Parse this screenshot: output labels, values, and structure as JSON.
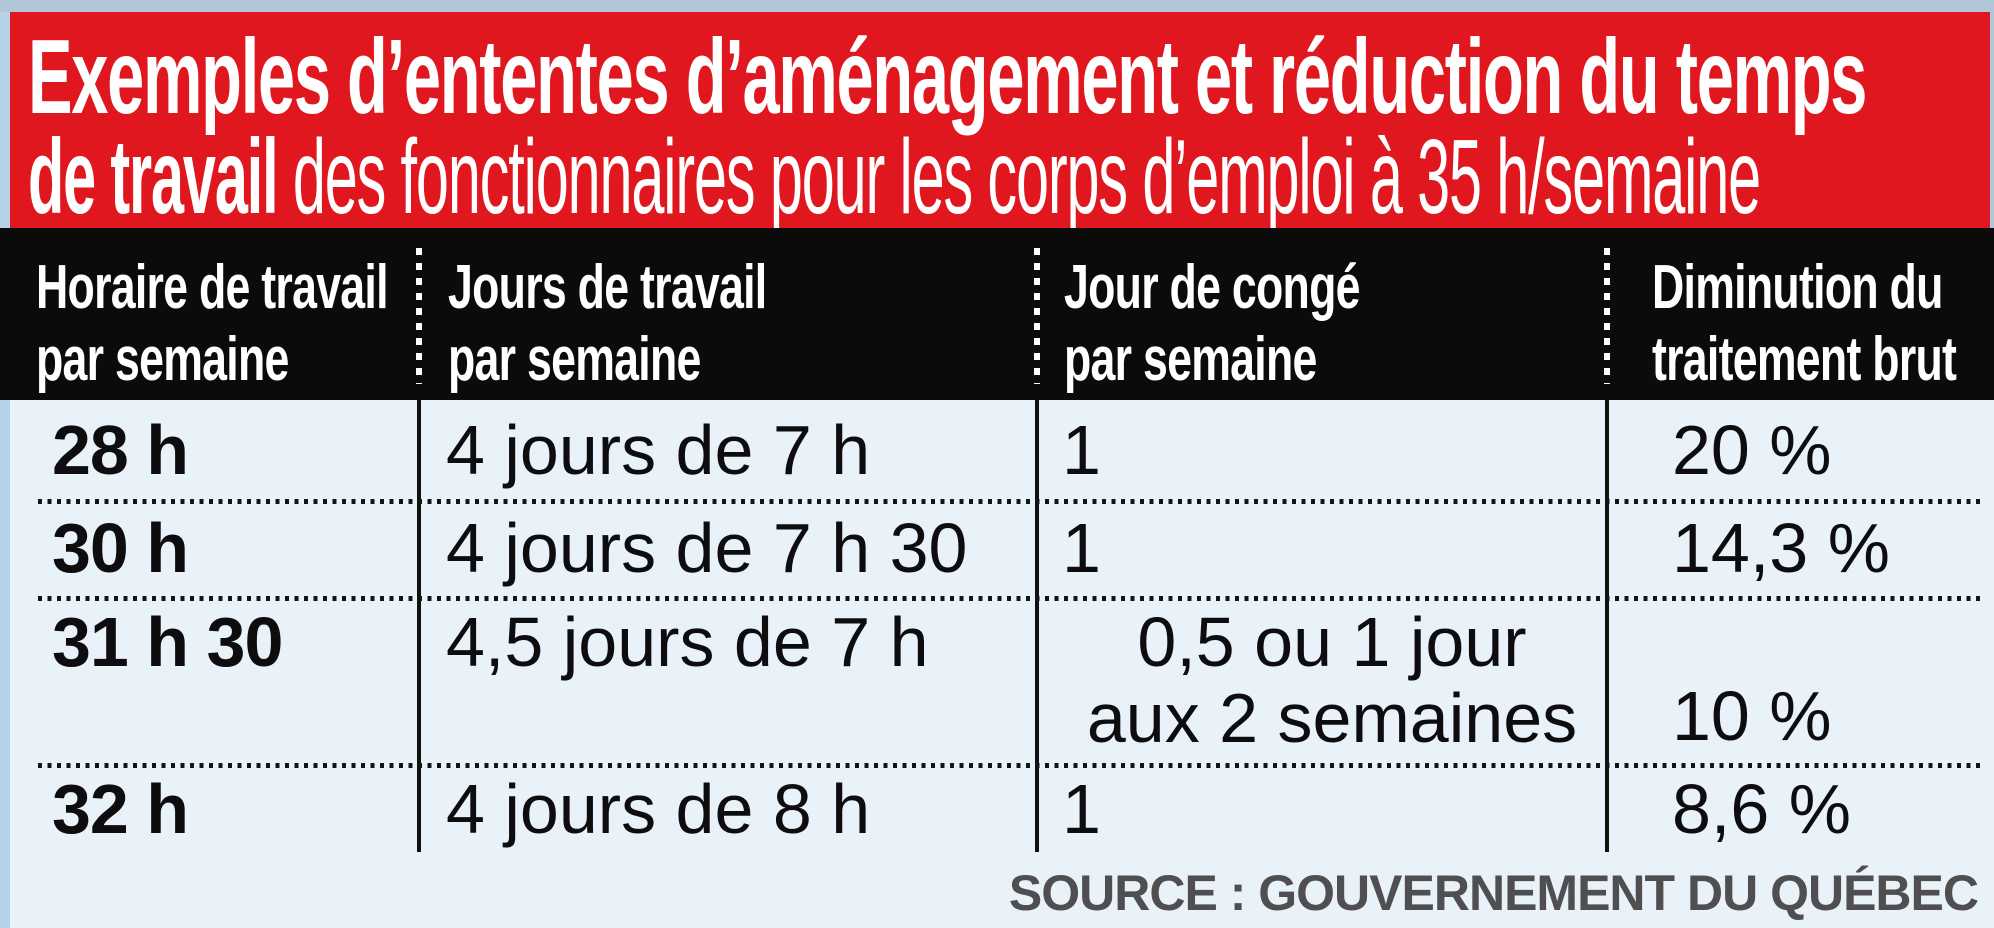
{
  "banner": {
    "line1_bold": "Exemples d’ententes d’aménagement et réduction du temps",
    "line2_bold": "de travail",
    "line2_regular": " des fonctionnaires pour les corps d’emploi à 35 h/semaine",
    "bg_color": "#e0171e",
    "text_color": "#ffffff"
  },
  "table": {
    "header_bg": "#0b0b0b",
    "header_text_color": "#ffffff",
    "body_bg": "#eaf2f9",
    "columns": [
      {
        "line1": "Horaire de travail",
        "line2": "par semaine"
      },
      {
        "line1": "Jours de travail",
        "line2": "par semaine"
      },
      {
        "line1": "Jour de congé",
        "line2": "par semaine"
      },
      {
        "line1": "Diminution du",
        "line2": "traitement brut"
      }
    ],
    "rows": [
      {
        "horaire": "28 h",
        "jours": "4 jours de 7 h",
        "conge": "1",
        "conge_line2": "",
        "diminution": "20 %"
      },
      {
        "horaire": "30 h",
        "jours": "4 jours de 7 h 30",
        "conge": "1",
        "conge_line2": "",
        "diminution": "14,3 %"
      },
      {
        "horaire": "31 h 30",
        "jours": "4,5 jours de 7 h",
        "conge": "0,5 ou 1 jour",
        "conge_line2": "aux 2 semaines",
        "diminution": "10 %"
      },
      {
        "horaire": "32 h",
        "jours": "4 jours de 8 h",
        "conge": "1",
        "conge_line2": "",
        "diminution": "8,6 %"
      }
    ]
  },
  "footer": {
    "source": "SOURCE : GOUVERNEMENT DU QUÉBEC",
    "text_color": "#4f4f51"
  },
  "chart_data": {
    "type": "table",
    "title": "Exemples d’ententes d’aménagement et réduction du temps de travail des fonctionnaires pour les corps d’emploi à 35 h/semaine",
    "columns": [
      "Horaire de travail par semaine",
      "Jours de travail par semaine",
      "Jour de congé par semaine",
      "Diminution du traitement brut"
    ],
    "rows": [
      [
        "28 h",
        "4 jours de 7 h",
        "1",
        "20 %"
      ],
      [
        "30 h",
        "4 jours de 7 h 30",
        "1",
        "14,3 %"
      ],
      [
        "31 h 30",
        "4,5 jours de 7 h",
        "0,5 ou 1 jour aux 2 semaines",
        "10 %"
      ],
      [
        "32 h",
        "4 jours de 8 h",
        "1",
        "8,6 %"
      ]
    ],
    "source": "SOURCE : GOUVERNEMENT DU QUÉBEC"
  }
}
